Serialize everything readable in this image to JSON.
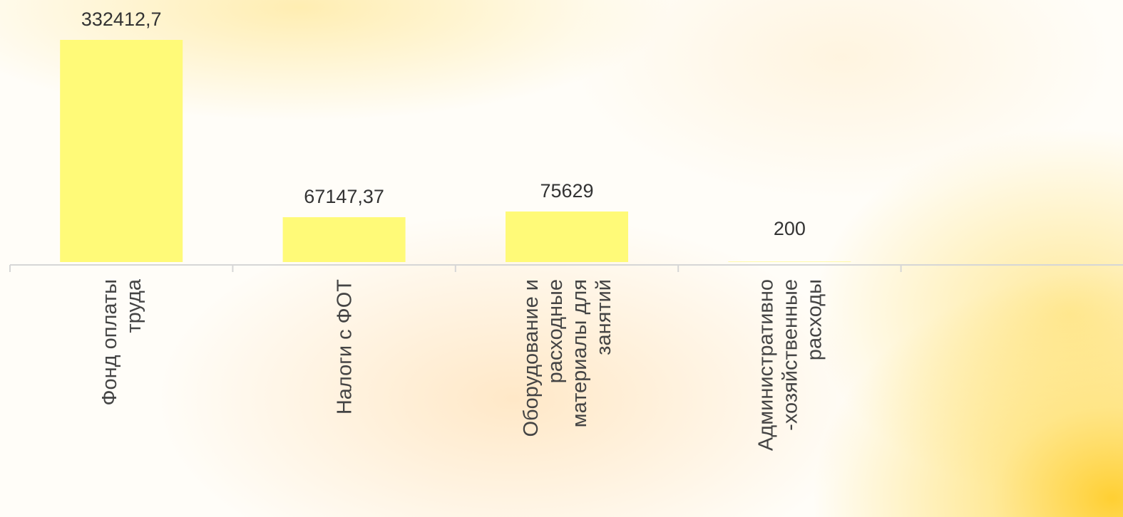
{
  "chart_data": {
    "type": "bar",
    "categories": [
      [
        "Фонд оплаты",
        "труда"
      ],
      [
        "Налоги с ФОТ"
      ],
      [
        "Оборудование и",
        "расходные",
        "материалы для",
        "занятий"
      ],
      [
        "Административно",
        "-хозяйственные",
        "расходы"
      ],
      []
    ],
    "values": [
      332412.7,
      67147.37,
      75629,
      200,
      null
    ],
    "data_labels": [
      "332412,7",
      "67147,37",
      "75629",
      "200",
      ""
    ],
    "colors": {
      "bar": "#fffa78"
    },
    "title": "",
    "xlabel": "",
    "ylabel": "",
    "ylim": [
      0,
      332412.7
    ],
    "grid": false,
    "legend": "none"
  }
}
